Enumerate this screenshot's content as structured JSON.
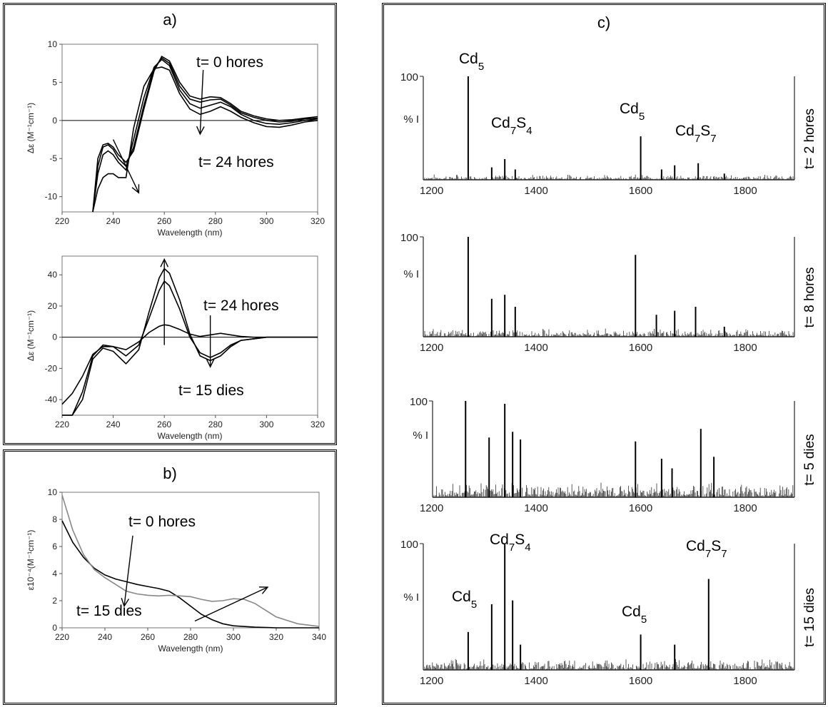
{
  "panels": {
    "a": {
      "label": "a)"
    },
    "b": {
      "label": "b)"
    },
    "c": {
      "label": "c)"
    }
  },
  "chart_data": [
    {
      "id": "a_top",
      "type": "line",
      "xlabel": "Wavelength (nm)",
      "ylabel": "Δε (M⁻¹cm⁻¹)",
      "xlim": [
        220,
        320
      ],
      "ylim": [
        -12,
        10
      ],
      "xticks": [
        220,
        240,
        260,
        280,
        300,
        320
      ],
      "yticks": [
        -10,
        -5,
        0,
        5,
        10
      ],
      "grid": false,
      "annotations": [
        "t= 0 hores",
        "t= 24 hores"
      ],
      "series": [
        {
          "x": [
            232,
            234,
            236,
            238,
            240,
            242,
            245,
            248,
            252,
            256,
            259,
            262,
            266,
            270,
            274,
            278,
            282,
            286,
            290,
            295,
            300,
            305,
            310,
            315,
            320
          ],
          "y": [
            -12,
            -5,
            -3.2,
            -3,
            -3.5,
            -4.5,
            -5.5,
            -4,
            1.5,
            6.5,
            8.4,
            7.8,
            5,
            3.2,
            2.8,
            3.1,
            3,
            2.2,
            1.2,
            0.6,
            0.2,
            0,
            0.1,
            0.3,
            0.5
          ]
        },
        {
          "x": [
            232,
            234,
            236,
            238,
            240,
            242,
            245,
            248,
            252,
            256,
            259,
            262,
            266,
            270,
            274,
            278,
            282,
            286,
            290,
            295,
            300,
            305,
            310,
            315,
            320
          ],
          "y": [
            -12,
            -6,
            -3.5,
            -3.2,
            -3.8,
            -5,
            -6,
            -3.5,
            2,
            6.8,
            8.2,
            7.5,
            4.5,
            2.8,
            2.4,
            2.7,
            2.8,
            2,
            1,
            0.4,
            0,
            -0.2,
            -0.1,
            0.2,
            0.3
          ]
        },
        {
          "x": [
            232,
            234,
            236,
            238,
            240,
            242,
            245,
            248,
            252,
            256,
            259,
            262,
            266,
            270,
            274,
            278,
            282,
            286,
            290,
            295,
            300,
            305,
            310,
            315,
            320
          ],
          "y": [
            -12,
            -7,
            -4.5,
            -4,
            -4.5,
            -5.5,
            -6.5,
            -2.5,
            3,
            7,
            8,
            7.2,
            4,
            2.2,
            1.6,
            2,
            2.4,
            1.8,
            0.8,
            0,
            -0.4,
            -0.5,
            -0.3,
            0,
            0.2
          ]
        },
        {
          "x": [
            232,
            234,
            236,
            238,
            240,
            242,
            245,
            248,
            252,
            256,
            259,
            262,
            266,
            270,
            274,
            278,
            282,
            286,
            290,
            295,
            300,
            305,
            310,
            315,
            320
          ],
          "y": [
            -12,
            -9,
            -7.5,
            -7,
            -7,
            -7.5,
            -7.5,
            -1,
            4.5,
            6.8,
            7,
            6.6,
            3.5,
            1.5,
            0.8,
            1.2,
            1.8,
            1.2,
            0.4,
            -0.3,
            -0.8,
            -0.9,
            -0.6,
            -0.2,
            0
          ]
        }
      ]
    },
    {
      "id": "a_bottom",
      "type": "line",
      "xlabel": "Wavelength (nm)",
      "ylabel": "Δε (M⁻¹cm⁻¹)",
      "xlim": [
        220,
        320
      ],
      "ylim": [
        -50,
        52
      ],
      "xticks": [
        220,
        240,
        260,
        280,
        300,
        320
      ],
      "yticks": [
        -40,
        -20,
        0,
        20,
        40
      ],
      "grid": false,
      "annotations": [
        "t= 24 hores",
        "t= 15 dies"
      ],
      "series": [
        {
          "x": [
            220,
            224,
            228,
            232,
            236,
            240,
            245,
            250,
            254,
            258,
            260,
            262,
            266,
            270,
            274,
            278,
            282,
            286,
            290,
            295,
            300,
            310,
            320
          ],
          "y": [
            -50,
            -50,
            -35,
            -12,
            -5,
            -6,
            -12,
            -5,
            12,
            30,
            36,
            33,
            18,
            0,
            -10,
            -13,
            -10,
            -5,
            -2,
            -1,
            0,
            0,
            0
          ]
        },
        {
          "x": [
            220,
            224,
            228,
            232,
            236,
            240,
            245,
            250,
            254,
            258,
            260,
            262,
            266,
            270,
            274,
            278,
            282,
            286,
            290,
            295,
            300,
            310,
            320
          ],
          "y": [
            -50,
            -50,
            -40,
            -14,
            -7,
            -9,
            -17,
            -8,
            16,
            38,
            44,
            41,
            24,
            2,
            -12,
            -15,
            -12,
            -6,
            -2,
            -1,
            0,
            0,
            0
          ]
        },
        {
          "x": [
            220,
            224,
            228,
            232,
            236,
            240,
            245,
            250,
            254,
            258,
            260,
            262,
            266,
            270,
            274,
            278,
            282,
            286,
            290,
            295,
            300,
            310,
            320
          ],
          "y": [
            -43,
            -36,
            -25,
            -11,
            -6,
            -6,
            -8,
            -3,
            3,
            7,
            8,
            7.5,
            5,
            2,
            0.5,
            1.5,
            2.5,
            1.5,
            0.5,
            0,
            0,
            0,
            0
          ]
        }
      ]
    },
    {
      "id": "b",
      "type": "line",
      "xlabel": "Wavelength (nm)",
      "ylabel": "ε10⁻⁴(M⁻¹cm⁻¹)",
      "xlim": [
        220,
        340
      ],
      "ylim": [
        0,
        10
      ],
      "xticks": [
        220,
        240,
        260,
        280,
        300,
        320,
        340
      ],
      "yticks": [
        0,
        2,
        4,
        6,
        8,
        10
      ],
      "grid": false,
      "annotations": [
        "t= 0 hores",
        "t= 15 dies"
      ],
      "series": [
        {
          "color": "#000000",
          "x": [
            220,
            225,
            230,
            235,
            240,
            245,
            250,
            255,
            260,
            265,
            270,
            275,
            280,
            285,
            290,
            295,
            300,
            310,
            320,
            330,
            340
          ],
          "y": [
            7.9,
            6.3,
            5.2,
            4.4,
            3.9,
            3.6,
            3.4,
            3.2,
            3.05,
            2.9,
            2.7,
            2.2,
            1.6,
            1.0,
            0.6,
            0.3,
            0.15,
            0.05,
            0,
            0,
            0
          ]
        },
        {
          "color": "#888888",
          "x": [
            220,
            225,
            230,
            235,
            240,
            245,
            250,
            255,
            260,
            265,
            270,
            275,
            280,
            285,
            290,
            295,
            300,
            305,
            310,
            315,
            320,
            330,
            340
          ],
          "y": [
            9.8,
            7.2,
            5.4,
            4.3,
            3.7,
            3.2,
            2.7,
            2.5,
            2.4,
            2.35,
            2.4,
            2.35,
            2.3,
            2.1,
            1.95,
            2.0,
            2.15,
            2.1,
            1.8,
            1.3,
            0.8,
            0.3,
            0.1
          ]
        }
      ]
    },
    {
      "id": "c",
      "type": "bar",
      "xlim": [
        1180,
        1860
      ],
      "xticks": [
        1200,
        1400,
        1600,
        1800
      ],
      "y_axis_mark": "100",
      "y_axis_label": "% I",
      "spectra": [
        {
          "label": "t= 2 hores",
          "annotations": [
            "Cd5",
            "Cd7S4",
            "Cd5",
            "Cd7S7"
          ],
          "peaks": [
            [
              1270,
              100
            ],
            [
              1315,
              12
            ],
            [
              1340,
              20
            ],
            [
              1360,
              10
            ],
            [
              1600,
              42
            ],
            [
              1640,
              10
            ],
            [
              1665,
              14
            ],
            [
              1710,
              16
            ],
            [
              1760,
              6
            ]
          ]
        },
        {
          "label": "t= 8 hores",
          "annotations": [],
          "peaks": [
            [
              1270,
              100
            ],
            [
              1315,
              38
            ],
            [
              1340,
              42
            ],
            [
              1360,
              30
            ],
            [
              1590,
              82
            ],
            [
              1630,
              22
            ],
            [
              1665,
              26
            ],
            [
              1705,
              30
            ],
            [
              1760,
              10
            ]
          ]
        },
        {
          "label": "t= 5 dies",
          "annotations": [],
          "peaks": [
            [
              1265,
              100
            ],
            [
              1310,
              62
            ],
            [
              1340,
              97
            ],
            [
              1355,
              68
            ],
            [
              1370,
              60
            ],
            [
              1590,
              58
            ],
            [
              1640,
              40
            ],
            [
              1660,
              30
            ],
            [
              1715,
              71
            ],
            [
              1740,
              42
            ]
          ]
        },
        {
          "label": "t= 15 dies",
          "annotations": [
            "Cd7S4",
            "Cd5",
            "Cd5",
            "Cd7S7"
          ],
          "peaks": [
            [
              1270,
              30
            ],
            [
              1315,
              52
            ],
            [
              1340,
              100
            ],
            [
              1355,
              55
            ],
            [
              1370,
              20
            ],
            [
              1600,
              28
            ],
            [
              1665,
              20
            ],
            [
              1730,
              72
            ]
          ]
        }
      ]
    }
  ]
}
